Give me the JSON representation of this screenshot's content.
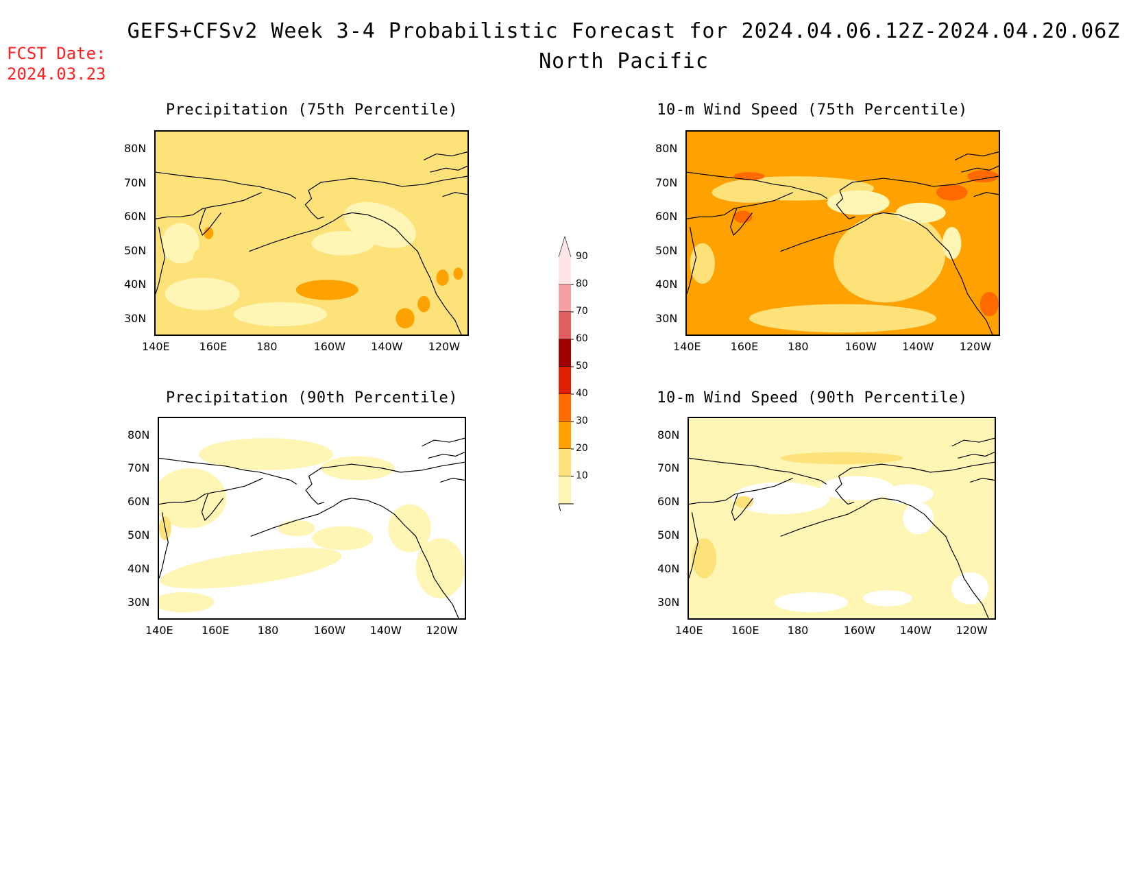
{
  "header": {
    "title": "GEFS+CFSv2 Week 3-4 Probabilistic Forecast for 2024.04.06.12Z-2024.04.20.06Z",
    "subtitle": "North Pacific",
    "fcst_date_label": "FCST Date:",
    "fcst_date_value": "2024.03.23"
  },
  "axes": {
    "lat_labels": [
      "80N",
      "70N",
      "60N",
      "50N",
      "40N",
      "30N"
    ],
    "lon_labels": [
      "140E",
      "160E",
      "180",
      "160W",
      "140W",
      "120W"
    ]
  },
  "panels": [
    {
      "title": "Precipitation (75th Percentile)",
      "base_color": "#fde27a"
    },
    {
      "title": "10-m Wind Speed (75th Percentile)",
      "base_color": "#ffa200"
    },
    {
      "title": "Precipitation (90th Percentile)",
      "base_color": "#ffffff"
    },
    {
      "title": "10-m Wind Speed (90th Percentile)",
      "base_color": "#fff5b4"
    }
  ],
  "colorbar": {
    "levels": [
      "90",
      "80",
      "70",
      "60",
      "50",
      "40",
      "30",
      "20",
      "10"
    ],
    "colors": [
      "#ffe5e5",
      "#f4a0a0",
      "#e06060",
      "#a00000",
      "#e01e00",
      "#ff6a00",
      "#ffa200",
      "#fde27a",
      "#fff5b4"
    ]
  }
}
